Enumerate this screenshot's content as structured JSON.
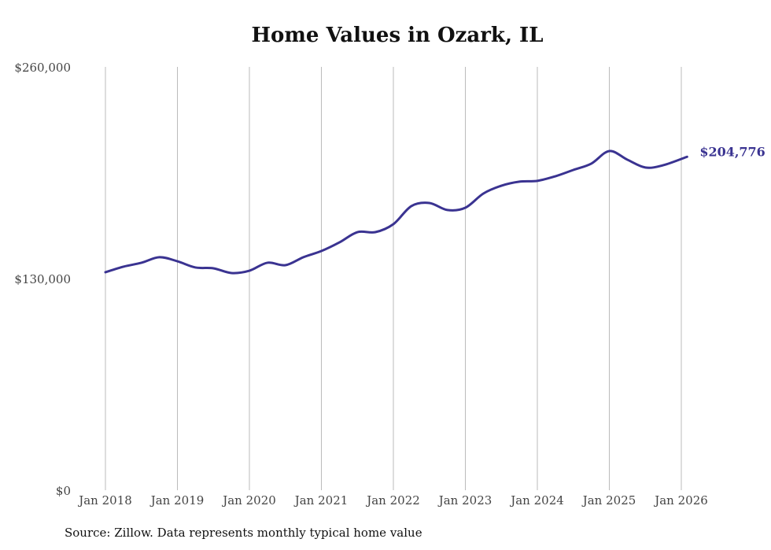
{
  "chart_data": {
    "type": "line",
    "title": "Home Values in Ozark, IL",
    "xlabel": "",
    "ylabel": "",
    "ylim": [
      0,
      260000
    ],
    "y_ticks": [
      0,
      130000,
      260000
    ],
    "y_tick_labels": [
      "$0",
      "$130,000",
      "$260,000"
    ],
    "x_tick_labels": [
      "Jan 2018",
      "Jan 2019",
      "Jan 2020",
      "Jan 2021",
      "Jan 2022",
      "Jan 2023",
      "Jan 2024",
      "Jan 2025",
      "Jan 2026"
    ],
    "grid": "vertical",
    "series": [
      {
        "name": "Typical home value",
        "color": "#3a3391",
        "x": [
          2018.0,
          2018.25,
          2018.5,
          2018.75,
          2019.0,
          2019.25,
          2019.5,
          2019.75,
          2020.0,
          2020.25,
          2020.5,
          2020.75,
          2021.0,
          2021.25,
          2021.5,
          2021.75,
          2022.0,
          2022.25,
          2022.5,
          2022.75,
          2023.0,
          2023.25,
          2023.5,
          2023.75,
          2024.0,
          2024.25,
          2024.5,
          2024.75,
          2025.0,
          2025.25,
          2025.5,
          2025.75,
          2026.08
        ],
        "values": [
          133900,
          137300,
          139700,
          143100,
          140600,
          136800,
          136300,
          133400,
          134800,
          139700,
          138200,
          143100,
          146900,
          152200,
          158500,
          158500,
          163400,
          174500,
          176400,
          172100,
          173500,
          182200,
          187000,
          189500,
          190000,
          192800,
          196700,
          200600,
          208300,
          203000,
          198200,
          199600,
          204776
        ]
      }
    ],
    "end_label": "$204,776"
  },
  "source": "Source: Zillow. Data represents monthly typical home value"
}
